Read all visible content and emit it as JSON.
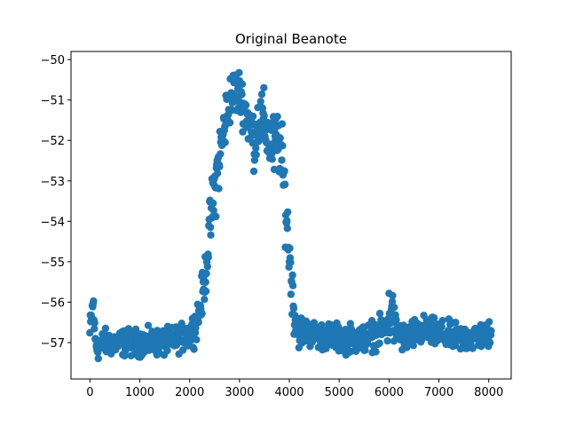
{
  "chart_data": {
    "type": "scatter",
    "title": "Original Beanote",
    "xlabel": "",
    "ylabel": "",
    "xlim": [
      -380,
      8450
    ],
    "ylim": [
      -57.9,
      -49.8
    ],
    "xticks": [
      0,
      1000,
      2000,
      3000,
      4000,
      5000,
      6000,
      7000,
      8000
    ],
    "yticks": [
      -57,
      -56,
      -55,
      -54,
      -53,
      -52,
      -51,
      -50
    ],
    "ytick_labels": [
      "−57",
      "−56",
      "−55",
      "−54",
      "−53",
      "−52",
      "−51",
      "−50"
    ],
    "grid": false,
    "series": [
      {
        "color": "#1f77b4",
        "marker": "circle",
        "n_points": 8050,
        "profile": [
          [
            0,
            -56.8
          ],
          [
            40,
            -56.3
          ],
          [
            70,
            -56.0
          ],
          [
            100,
            -56.9
          ],
          [
            140,
            -57.1
          ],
          [
            300,
            -57.0
          ],
          [
            600,
            -57.0
          ],
          [
            1000,
            -57.0
          ],
          [
            1500,
            -57.0
          ],
          [
            1800,
            -56.9
          ],
          [
            2000,
            -56.8
          ],
          [
            2100,
            -56.6
          ],
          [
            2200,
            -56.2
          ],
          [
            2300,
            -55.5
          ],
          [
            2400,
            -54.2
          ],
          [
            2500,
            -53.2
          ],
          [
            2600,
            -52.4
          ],
          [
            2700,
            -51.6
          ],
          [
            2800,
            -51.0
          ],
          [
            2900,
            -50.8
          ],
          [
            3000,
            -50.8
          ],
          [
            3100,
            -51.2
          ],
          [
            3200,
            -51.6
          ],
          [
            3300,
            -52.0
          ],
          [
            3400,
            -51.4
          ],
          [
            3500,
            -51.6
          ],
          [
            3600,
            -52.0
          ],
          [
            3700,
            -52.2
          ],
          [
            3800,
            -52.0
          ],
          [
            3900,
            -53.2
          ],
          [
            4000,
            -54.8
          ],
          [
            4100,
            -56.3
          ],
          [
            4200,
            -56.7
          ],
          [
            4500,
            -56.8
          ],
          [
            5000,
            -56.9
          ],
          [
            5500,
            -56.9
          ],
          [
            5900,
            -56.7
          ],
          [
            6000,
            -56.4
          ],
          [
            6050,
            -56.1
          ],
          [
            6100,
            -56.6
          ],
          [
            6300,
            -56.9
          ],
          [
            6700,
            -56.7
          ],
          [
            7000,
            -56.8
          ],
          [
            7500,
            -56.9
          ],
          [
            8050,
            -56.8
          ]
        ],
        "spread": [
          [
            0,
            0.5
          ],
          [
            200,
            0.35
          ],
          [
            2000,
            0.35
          ],
          [
            2300,
            0.6
          ],
          [
            2500,
            0.9
          ],
          [
            2800,
            0.7
          ],
          [
            3000,
            0.6
          ],
          [
            3400,
            0.8
          ],
          [
            3700,
            0.9
          ],
          [
            3900,
            1.0
          ],
          [
            4100,
            0.6
          ],
          [
            4300,
            0.35
          ],
          [
            5900,
            0.4
          ],
          [
            6020,
            0.9
          ],
          [
            6150,
            0.4
          ],
          [
            8050,
            0.35
          ]
        ]
      }
    ]
  }
}
